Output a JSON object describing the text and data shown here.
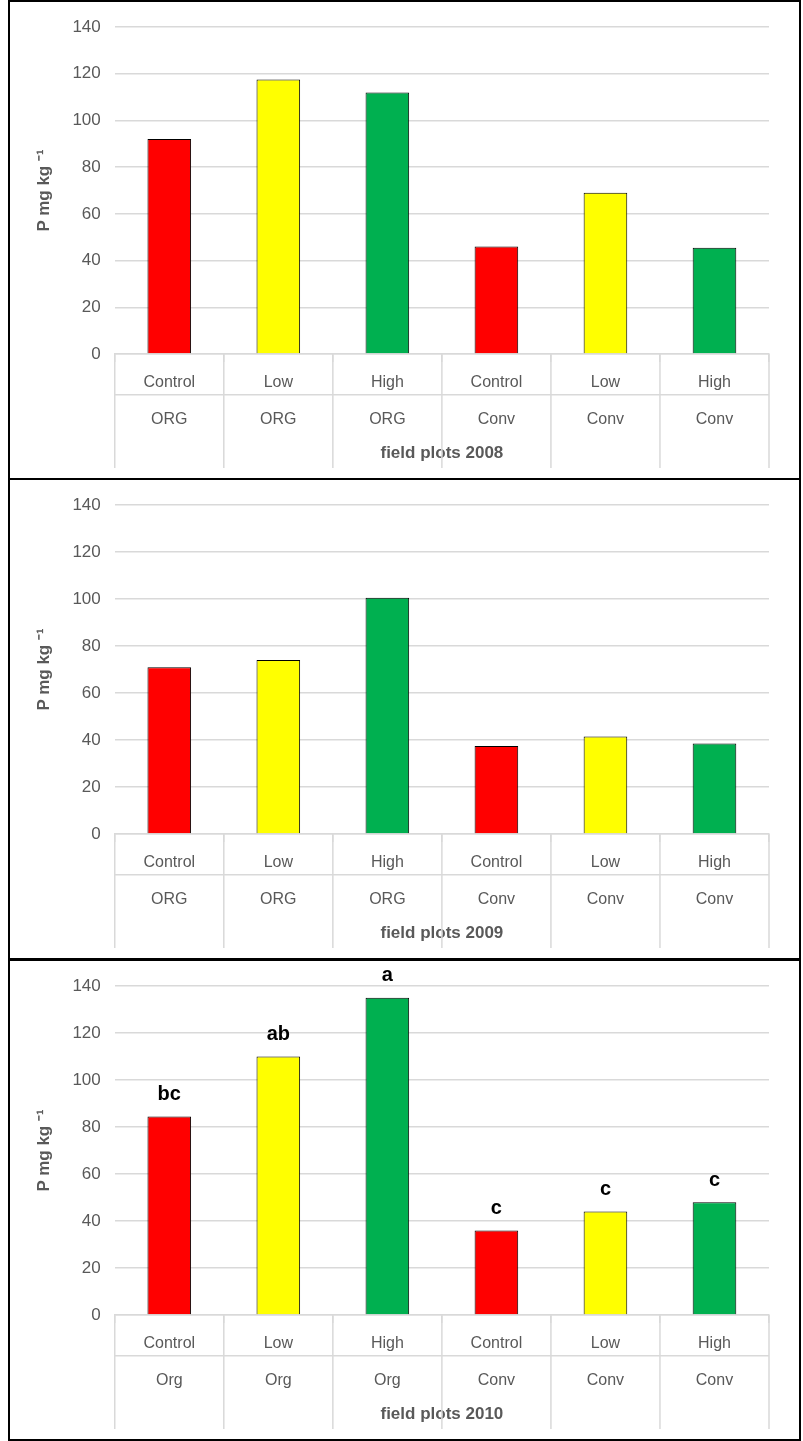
{
  "chart_data": [
    {
      "type": "bar",
      "xlabel": "field plots 2008",
      "ylabel": "P mg kg ⁻¹",
      "categories": [
        "Control\nORG",
        "Low\nORG",
        "High\nORG",
        "Control\nConv",
        "Low\nConv",
        "High\nConv"
      ],
      "values": [
        92,
        117.5,
        112,
        46,
        69,
        45.5
      ],
      "colors": [
        "#ff0000",
        "#ffff00",
        "#00b050",
        "#ff0000",
        "#ffff00",
        "#00b050"
      ],
      "ylim": [
        0,
        140
      ],
      "yticks": [
        0,
        20,
        40,
        60,
        80,
        100,
        120,
        140
      ],
      "grid": "y"
    },
    {
      "type": "bar",
      "xlabel": "field plots 2009",
      "ylabel": "P mg kg ⁻¹",
      "categories": [
        "Control\nORG",
        "Low\nORG",
        "High\nORG",
        "Control\nConv",
        "Low\nConv",
        "High\nConv"
      ],
      "values": [
        71,
        74,
        100.5,
        37.5,
        41.5,
        38.5
      ],
      "colors": [
        "#ff0000",
        "#ffff00",
        "#00b050",
        "#ff0000",
        "#ffff00",
        "#00b050"
      ],
      "ylim": [
        0,
        140
      ],
      "yticks": [
        0,
        20,
        40,
        60,
        80,
        100,
        120,
        140
      ],
      "grid": "y"
    },
    {
      "type": "bar",
      "xlabel": "field plots 2010",
      "ylabel": "P mg kg ⁻¹",
      "categories": [
        "Control\nOrg",
        "Low\nOrg",
        "High\nOrg",
        "Control\nConv",
        "Low\nConv",
        "High\nConv"
      ],
      "values": [
        84.5,
        110,
        135,
        36,
        44,
        48
      ],
      "colors": [
        "#ff0000",
        "#ffff00",
        "#00b050",
        "#ff0000",
        "#ffff00",
        "#00b050"
      ],
      "ylim": [
        0,
        140
      ],
      "yticks": [
        0,
        20,
        40,
        60,
        80,
        100,
        120,
        140
      ],
      "grid": "y",
      "annotations": [
        {
          "text": "bc",
          "x": "Control\nOrg",
          "y": 84.5
        },
        {
          "text": "ab",
          "x": "Low\nOrg",
          "y": 110
        },
        {
          "text": "a",
          "x": "High\nOrg",
          "y": 135
        },
        {
          "text": "c",
          "x": "Control\nConv",
          "y": 36
        },
        {
          "text": "c",
          "x": "Low\nConv",
          "y": 44
        },
        {
          "text": "c",
          "x": "High\nConv",
          "y": 48
        }
      ]
    }
  ]
}
